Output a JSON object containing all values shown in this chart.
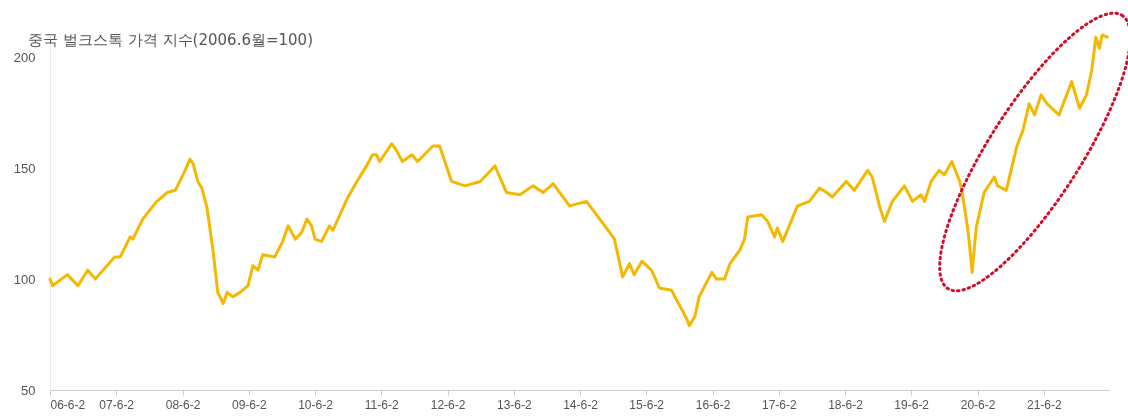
{
  "chart_data": {
    "type": "line",
    "title": "중국 벌크스톡 가격 지수(2006.6월=100)",
    "x": [
      "2006-06-02",
      "2006-06-16",
      "2006-09-06",
      "2006-11-03",
      "2006-12-27",
      "2007-02-07",
      "2007-05-25",
      "2007-06-24",
      "2007-08-18",
      "2007-09-02",
      "2007-10-26",
      "2008-01-12",
      "2008-03-09",
      "2008-04-23",
      "2008-06-16",
      "2008-07-12",
      "2008-07-30",
      "2008-08-25",
      "2008-09-16",
      "2008-10-15",
      "2008-11-18",
      "2008-12-13",
      "2009-01-12",
      "2009-02-03",
      "2009-03-06",
      "2009-04-15",
      "2009-05-29",
      "2009-06-24",
      "2009-07-23",
      "2009-08-18",
      "2009-10-23",
      "2009-12-06",
      "2010-01-05",
      "2010-02-14",
      "2010-03-20",
      "2010-04-19",
      "2010-05-14",
      "2010-06-02",
      "2010-07-08",
      "2010-08-21",
      "2010-09-09",
      "2010-11-03",
      "2010-11-25",
      "2011-01-19",
      "2011-03-13",
      "2011-04-15",
      "2011-05-07",
      "2011-05-25",
      "2011-07-30",
      "2011-08-25",
      "2011-09-27",
      "2011-11-18",
      "2011-12-20",
      "2012-03-13",
      "2012-04-19",
      "2012-06-24",
      "2012-09-06",
      "2012-11-29",
      "2013-02-18",
      "2013-04-23",
      "2013-07-05",
      "2013-09-16",
      "2013-11-11",
      "2014-01-05",
      "2014-04-05",
      "2014-07-08",
      "2014-10-26",
      "2014-12-09",
      "2015-01-23",
      "2015-03-02",
      "2015-03-27",
      "2015-05-10",
      "2015-07-01",
      "2015-08-14",
      "2015-10-19",
      "2016-01-12",
      "2016-01-26",
      "2016-02-25",
      "2016-03-20",
      "2016-05-29",
      "2016-06-24",
      "2016-08-07",
      "2016-09-06",
      "2016-10-30",
      "2016-11-25",
      "2016-12-13",
      "2017-02-28",
      "2017-04-01",
      "2017-05-10",
      "2017-05-25",
      "2017-06-24",
      "2017-09-13",
      "2017-11-18",
      "2018-01-12",
      "2018-02-21",
      "2018-03-24",
      "2018-06-09",
      "2018-07-23",
      "2018-10-05",
      "2018-10-30",
      "2018-12-09",
      "2019-01-05",
      "2019-02-18",
      "2019-04-26",
      "2019-06-09",
      "2019-07-26",
      "2019-08-14",
      "2019-09-20",
      "2019-11-03",
      "2019-12-02",
      "2020-01-12",
      "2020-02-25",
      "2020-03-09",
      "2020-04-08",
      "2020-04-19",
      "2020-05-03",
      "2020-05-25",
      "2020-07-08",
      "2020-09-02",
      "2020-09-20",
      "2020-11-07",
      "2021-01-05",
      "2021-02-07",
      "2021-03-13",
      "2021-04-12",
      "2021-05-18",
      "2021-06-20",
      "2021-08-25",
      "2021-11-03",
      "2021-12-16",
      "2022-01-23",
      "2022-02-21",
      "2022-03-16",
      "2022-04-05",
      "2022-04-19",
      "2022-05-18"
    ],
    "series": [
      {
        "color": "#f5b800",
        "values": [
          100,
          97,
          102,
          97,
          104,
          100,
          110,
          110,
          119,
          118,
          127,
          135,
          139,
          140,
          149,
          154,
          152,
          144,
          141,
          132,
          112,
          94,
          89,
          94,
          92,
          94,
          97,
          106,
          104,
          111,
          110,
          117,
          124,
          118,
          121,
          127,
          124,
          118,
          117,
          124,
          122,
          132,
          136,
          144,
          151,
          156,
          156,
          153,
          161,
          158,
          153,
          156,
          153,
          160,
          160,
          144,
          142,
          144,
          151,
          139,
          138,
          142,
          139,
          143,
          133,
          135,
          123,
          118,
          101,
          107,
          102,
          108,
          104,
          96,
          95,
          82,
          79,
          83,
          92,
          103,
          100,
          100,
          107,
          113,
          118,
          128,
          129,
          126,
          119,
          123,
          117,
          133,
          135,
          141,
          139,
          137,
          144,
          140,
          149,
          146,
          133,
          126,
          135,
          142,
          135,
          138,
          135,
          144,
          149,
          147,
          153,
          144,
          139,
          123,
          115,
          103,
          123,
          139,
          146,
          142,
          140,
          160,
          167,
          179,
          174,
          183,
          179,
          174,
          189,
          177,
          183,
          194,
          209,
          204,
          210,
          209
        ]
      }
    ],
    "xlim": [
      "2006-06-02",
      "2022-06-02"
    ],
    "xticks": [
      {
        "value": "2006-06-02",
        "label": "06-6-2"
      },
      {
        "value": "2007-06-02",
        "label": "07-6-2"
      },
      {
        "value": "2008-06-02",
        "label": "08-6-2"
      },
      {
        "value": "2009-06-02",
        "label": "09-6-2"
      },
      {
        "value": "2010-06-02",
        "label": "10-6-2"
      },
      {
        "value": "2011-06-02",
        "label": "11-6-2"
      },
      {
        "value": "2012-06-02",
        "label": "12-6-2"
      },
      {
        "value": "2013-06-02",
        "label": "13-6-2"
      },
      {
        "value": "2014-06-02",
        "label": "14-6-2"
      },
      {
        "value": "2015-06-02",
        "label": "15-6-2"
      },
      {
        "value": "2016-06-02",
        "label": "16-6-2"
      },
      {
        "value": "2017-06-02",
        "label": "17-6-2"
      },
      {
        "value": "2018-06-02",
        "label": "18-6-2"
      },
      {
        "value": "2019-06-02",
        "label": "19-6-2"
      },
      {
        "value": "2020-06-02",
        "label": "20-6-2"
      },
      {
        "value": "2021-06-02",
        "label": "21-6-2"
      }
    ],
    "ylim": [
      50,
      210
    ],
    "yticks": [
      50,
      100,
      150,
      200
    ],
    "grid": false
  }
}
